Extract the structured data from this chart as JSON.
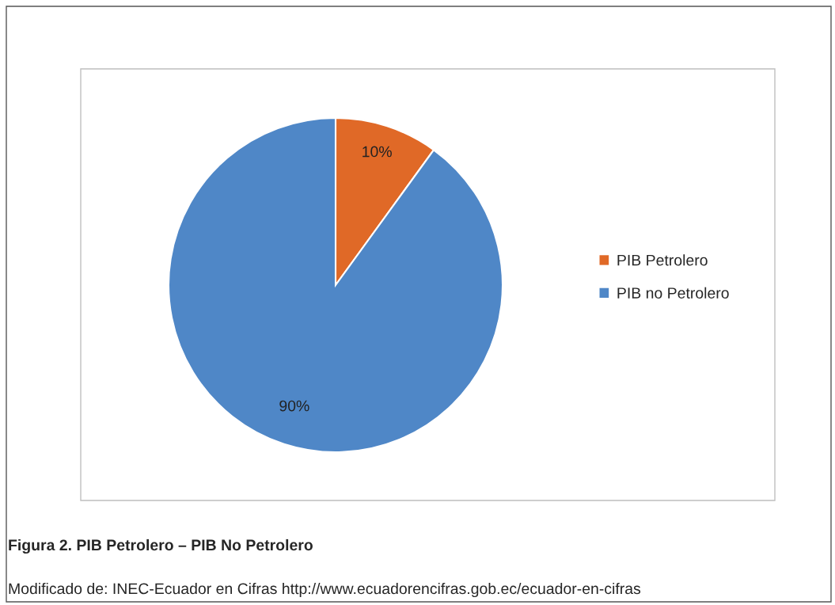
{
  "chart_data": {
    "type": "pie",
    "categories": [
      "PIB Petrolero",
      "PIB no Petrolero"
    ],
    "values": [
      10,
      90
    ],
    "colors": [
      "#e06927",
      "#4f87c7"
    ],
    "value_labels": [
      "10%",
      "90%"
    ],
    "legend": "right",
    "annotations": [
      "Figura 2. PIB Petrolero – PIB No Petrolero",
      "Modificado de: INEC-Ecuador en Cifras http://www.ecuadorencifras.gob.ec/ecuador-en-cifras"
    ]
  }
}
